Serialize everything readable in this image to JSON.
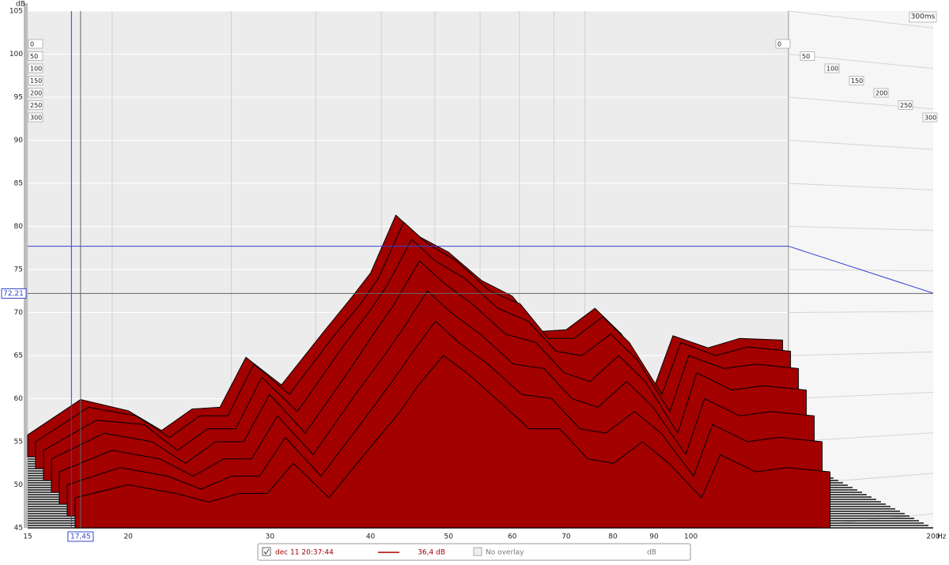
{
  "chart_data": {
    "type": "waterfall",
    "y_label": "dB",
    "x_unit_label": "Hz",
    "time_unit_label": "300ms",
    "xlim": [
      15,
      200
    ],
    "ylim": [
      45,
      105
    ],
    "xscale": "log",
    "grid": true,
    "xticks": [
      15,
      20,
      30,
      40,
      50,
      60,
      70,
      80,
      90,
      100,
      200
    ],
    "yticks": [
      45,
      50,
      55,
      60,
      65,
      70,
      75,
      80,
      85,
      90,
      95,
      100,
      105
    ],
    "color": "#a30000",
    "frequencies": [
      15,
      17.45,
      20,
      22,
      24,
      26,
      28,
      31,
      35,
      38,
      40,
      43,
      46,
      50,
      55,
      60,
      65,
      70,
      76,
      82,
      90,
      95,
      105,
      115,
      130
    ],
    "times": [
      0,
      50,
      100,
      150,
      200,
      250,
      300
    ],
    "slices": [
      [
        55.8,
        59.9,
        58.6,
        56.3,
        58.8,
        59,
        64.8,
        61.6,
        67.8,
        71.9,
        74.6,
        81.3,
        78.8,
        77,
        73.7,
        71.9,
        67.8,
        68,
        70.5,
        67.5,
        61.3,
        67.3,
        65.9,
        67,
        66.8
      ],
      [
        55,
        59,
        58,
        55.5,
        58,
        58,
        64,
        60.5,
        67,
        71,
        74,
        80.5,
        78,
        76,
        72.5,
        71,
        67,
        67,
        69.5,
        66.5,
        60.5,
        66.5,
        65,
        66,
        65.5
      ],
      [
        54,
        57.5,
        57,
        54,
        56.5,
        56.5,
        62.5,
        58.5,
        65.5,
        70,
        73,
        78.5,
        76,
        74,
        70.5,
        69,
        65.5,
        65,
        67.5,
        64.5,
        58.5,
        65,
        63.5,
        64,
        63.5
      ],
      [
        53,
        56,
        55,
        52.5,
        55,
        55,
        60.5,
        56,
        63,
        68,
        71,
        76,
        73.5,
        71,
        67.5,
        66.5,
        63,
        62,
        65,
        62,
        56,
        63,
        61,
        61.5,
        61
      ],
      [
        51.5,
        54,
        53,
        51,
        53,
        53,
        58,
        53.5,
        60.5,
        65,
        68,
        72.5,
        70,
        67.5,
        64,
        63.5,
        60,
        59,
        62,
        59,
        53.5,
        60,
        58,
        58.5,
        58
      ],
      [
        50,
        52,
        51,
        49.5,
        51,
        51,
        55.5,
        51,
        57.5,
        62,
        65,
        69,
        66.5,
        64,
        60.5,
        60,
        56.5,
        56,
        58.5,
        56,
        51,
        57,
        55,
        55.5,
        55
      ],
      [
        48.5,
        50,
        49,
        48,
        49,
        49,
        52.5,
        48.5,
        54.5,
        58.5,
        61.5,
        65,
        63,
        60,
        56.5,
        56.5,
        53,
        52.5,
        55,
        52.5,
        48.5,
        53.5,
        51.5,
        52,
        51.5
      ]
    ],
    "cursor": {
      "x": {
        "value": 17.45,
        "label": "17,45"
      },
      "y": {
        "value": 72.21,
        "label": "72,21"
      }
    },
    "reference_cursor": {
      "x": 17.0,
      "y": 77.7
    },
    "legend": {
      "measurement": "dec 11 20:37:44",
      "level": "36,4 dB",
      "overlay": "No overlay",
      "unit": "dB"
    }
  }
}
